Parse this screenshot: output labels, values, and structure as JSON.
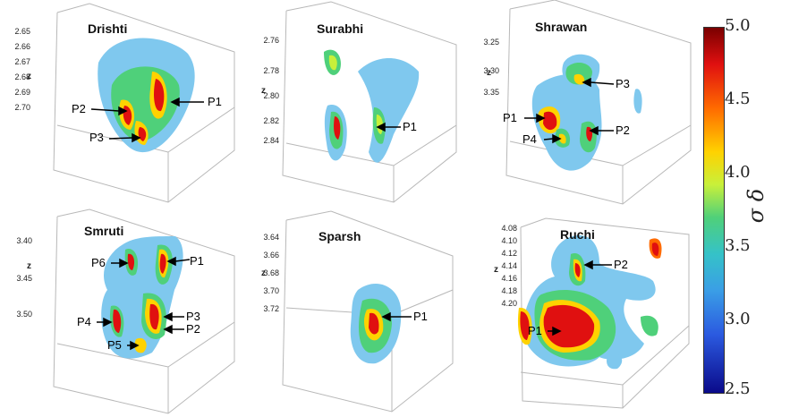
{
  "chart_data": {
    "type": "heatmap",
    "colorbar": {
      "label": "σ δ",
      "ticks": [
        "5.0",
        "4.5",
        "4.0",
        "3.5",
        "3.0",
        "2.5"
      ],
      "range": [
        2.5,
        5.0
      ],
      "colors": [
        "#0a0a8a",
        "#2b5ae0",
        "#3a9ee6",
        "#35c2c8",
        "#4fd07a",
        "#c8f03a",
        "#ffd200",
        "#ff6a00",
        "#e01010",
        "#7a0000"
      ]
    },
    "panels": [
      {
        "title": "Drishti",
        "zlabel": "z",
        "zticks": [
          "2.65",
          "2.66",
          "2.67",
          "2.68",
          "2.69",
          "2.70"
        ],
        "peaks": [
          "P1",
          "P2",
          "P3"
        ]
      },
      {
        "title": "Surabhi",
        "zlabel": "z",
        "zticks": [
          "2.76",
          "2.78",
          "2.80",
          "2.82",
          "2.84"
        ],
        "peaks": [
          "P1"
        ]
      },
      {
        "title": "Shrawan",
        "zlabel": "z",
        "zticks": [
          "3.25",
          "3.30",
          "3.35"
        ],
        "peaks": [
          "P1",
          "P2",
          "P3",
          "P4"
        ]
      },
      {
        "title": "Smruti",
        "zlabel": "z",
        "zticks": [
          "3.40",
          "3.45",
          "3.50"
        ],
        "peaks": [
          "P1",
          "P2",
          "P3",
          "P4",
          "P5",
          "P6"
        ]
      },
      {
        "title": "Sparsh",
        "zlabel": "z",
        "zticks": [
          "3.64",
          "3.66",
          "3.68",
          "3.70",
          "3.72"
        ],
        "peaks": [
          "P1"
        ]
      },
      {
        "title": "Ruchi",
        "zlabel": "z",
        "zticks": [
          "4.08",
          "4.10",
          "4.12",
          "4.14",
          "4.16",
          "4.18",
          "4.20"
        ],
        "peaks": [
          "P1",
          "P2"
        ]
      }
    ]
  }
}
